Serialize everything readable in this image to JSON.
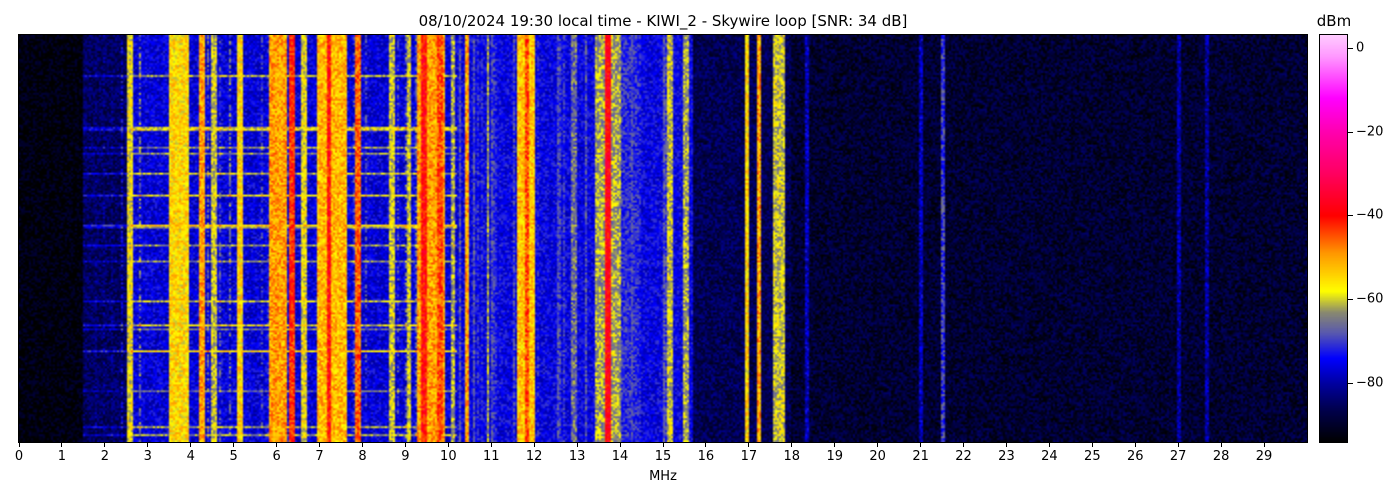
{
  "chart_data": {
    "type": "heatmap",
    "title": "08/10/2024 19:30 local time - KIWI_2 - Skywire loop [SNR: 34 dB]",
    "xlabel": "MHz",
    "ylabel": "",
    "xlim": [
      0,
      30
    ],
    "xticks": [
      "0",
      "1",
      "2",
      "3",
      "4",
      "5",
      "6",
      "7",
      "8",
      "9",
      "10",
      "11",
      "12",
      "13",
      "14",
      "15",
      "16",
      "17",
      "18",
      "19",
      "20",
      "21",
      "22",
      "23",
      "24",
      "25",
      "26",
      "27",
      "28",
      "29"
    ],
    "colorbar": {
      "label": "dBm",
      "range": [
        -94,
        3
      ],
      "ticks": [
        "0",
        "−20",
        "−40",
        "−60",
        "−80"
      ],
      "tick_values": [
        0,
        -20,
        -40,
        -60,
        -80
      ],
      "colormap": [
        [
          -94,
          "#000000"
        ],
        [
          -86,
          "#000050"
        ],
        [
          -80,
          "#0000a0"
        ],
        [
          -74,
          "#0000ff"
        ],
        [
          -68,
          "#5858b0"
        ],
        [
          -63,
          "#8a8a70"
        ],
        [
          -58,
          "#ffff00"
        ],
        [
          -49,
          "#ff9900"
        ],
        [
          -40,
          "#ff0000"
        ],
        [
          -30,
          "#ff0060"
        ],
        [
          -20,
          "#ff00b0"
        ],
        [
          -12,
          "#ff00ff"
        ],
        [
          -2,
          "#ff99ff"
        ],
        [
          3,
          "#ffccff"
        ]
      ]
    },
    "noise_floor_dBm": [
      [
        0,
        1.5,
        -93
      ],
      [
        1.5,
        2.6,
        -85
      ],
      [
        2.6,
        10.2,
        -76
      ],
      [
        10.2,
        15.7,
        -75
      ],
      [
        15.7,
        18.0,
        -86
      ],
      [
        18.0,
        30.0,
        -89
      ]
    ],
    "signal_bands_dBm": [
      [
        2.55,
        2.62,
        -58
      ],
      [
        3.5,
        3.95,
        -55
      ],
      [
        4.2,
        4.3,
        -50
      ],
      [
        4.5,
        4.6,
        -60
      ],
      [
        5.1,
        5.22,
        -55
      ],
      [
        5.85,
        6.2,
        -50
      ],
      [
        6.3,
        6.4,
        -42
      ],
      [
        6.6,
        6.7,
        -58
      ],
      [
        6.95,
        7.6,
        -52
      ],
      [
        7.2,
        7.27,
        -40
      ],
      [
        7.85,
        7.95,
        -46
      ],
      [
        8.65,
        8.72,
        -60
      ],
      [
        9.05,
        9.1,
        -60
      ],
      [
        9.3,
        9.9,
        -50
      ],
      [
        9.4,
        9.5,
        -40
      ],
      [
        9.75,
        9.85,
        -44
      ],
      [
        10.1,
        10.15,
        -62
      ],
      [
        10.4,
        10.45,
        -50
      ],
      [
        10.9,
        10.95,
        -62
      ],
      [
        11.6,
        12.0,
        -53
      ],
      [
        11.8,
        11.85,
        -44
      ],
      [
        12.9,
        13.0,
        -66
      ],
      [
        13.45,
        14.0,
        -62
      ],
      [
        13.65,
        13.75,
        -38
      ],
      [
        14.0,
        14.4,
        -72
      ],
      [
        15.1,
        15.2,
        -60
      ],
      [
        15.5,
        15.6,
        -62
      ],
      [
        16.95,
        17.0,
        -55
      ],
      [
        17.2,
        17.25,
        -50
      ],
      [
        17.6,
        17.8,
        -60
      ],
      [
        18.35,
        18.4,
        -78
      ],
      [
        21.0,
        21.03,
        -78
      ],
      [
        21.5,
        21.55,
        -70
      ],
      [
        27.0,
        27.05,
        -80
      ],
      [
        27.65,
        27.7,
        -80
      ]
    ]
  }
}
